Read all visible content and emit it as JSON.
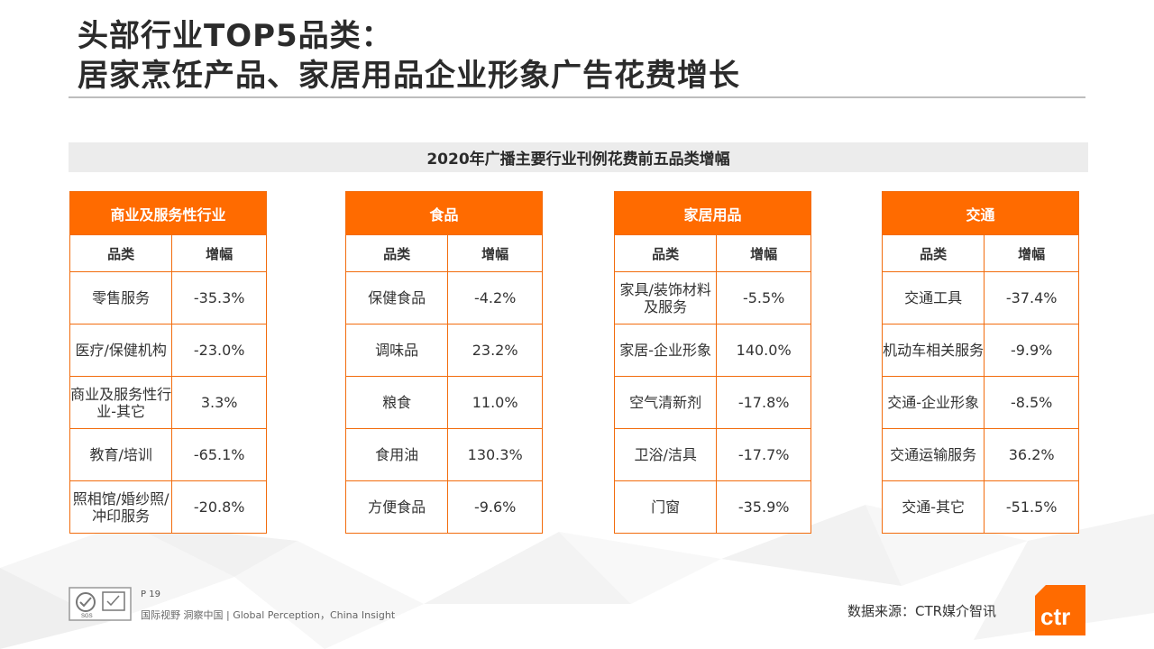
{
  "title": {
    "line1": "头部行业TOP5品类：",
    "line2": "居家烹饪产品、家居用品企业形象广告花费增长"
  },
  "section_heading": "2020年广播主要行业刊例花费前五品类增幅",
  "tables": [
    {
      "category": "商业及服务性行业",
      "col_item": "品类",
      "col_change": "增幅",
      "rows": [
        {
          "item": "零售服务",
          "change": "-35.3%"
        },
        {
          "item": "医疗/保健机构",
          "change": "-23.0%"
        },
        {
          "item": "商业及服务性行业-其它",
          "change": "3.3%"
        },
        {
          "item": "教育/培训",
          "change": "-65.1%"
        },
        {
          "item": "照相馆/婚纱照/冲印服务",
          "change": "-20.8%"
        }
      ]
    },
    {
      "category": "食品",
      "col_item": "品类",
      "col_change": "增幅",
      "rows": [
        {
          "item": "保健食品",
          "change": "-4.2%"
        },
        {
          "item": "调味品",
          "change": "23.2%"
        },
        {
          "item": "粮食",
          "change": "11.0%"
        },
        {
          "item": "食用油",
          "change": "130.3%"
        },
        {
          "item": "方便食品",
          "change": "-9.6%"
        }
      ]
    },
    {
      "category": "家居用品",
      "col_item": "品类",
      "col_change": "增幅",
      "rows": [
        {
          "item": "家具/装饰材料及服务",
          "change": "-5.5%"
        },
        {
          "item": "家居-企业形象",
          "change": "140.0%"
        },
        {
          "item": "空气清新剂",
          "change": "-17.8%"
        },
        {
          "item": "卫浴/洁具",
          "change": "-17.7%"
        },
        {
          "item": "门窗",
          "change": "-35.9%"
        }
      ]
    },
    {
      "category": "交通",
      "col_item": "品类",
      "col_change": "增幅",
      "rows": [
        {
          "item": "交通工具",
          "change": "-37.4%"
        },
        {
          "item": "机动车相关服务",
          "change": "-9.9%"
        },
        {
          "item": "交通-企业形象",
          "change": "-8.5%"
        },
        {
          "item": "交通运输服务",
          "change": "36.2%"
        },
        {
          "item": "交通-其它",
          "change": "-51.5%"
        }
      ]
    }
  ],
  "footer": {
    "page": "P 19",
    "tagline": "国际视野 洞察中国 | Global Perception，China Insight",
    "source": "数据来源：CTR媒介智讯",
    "brand_logo_text": "ctr",
    "cert_logo_text": "SGS"
  },
  "colors": {
    "accent": "#ff6b00",
    "table_border": "#f26c0d",
    "band_bg": "#ececec"
  }
}
